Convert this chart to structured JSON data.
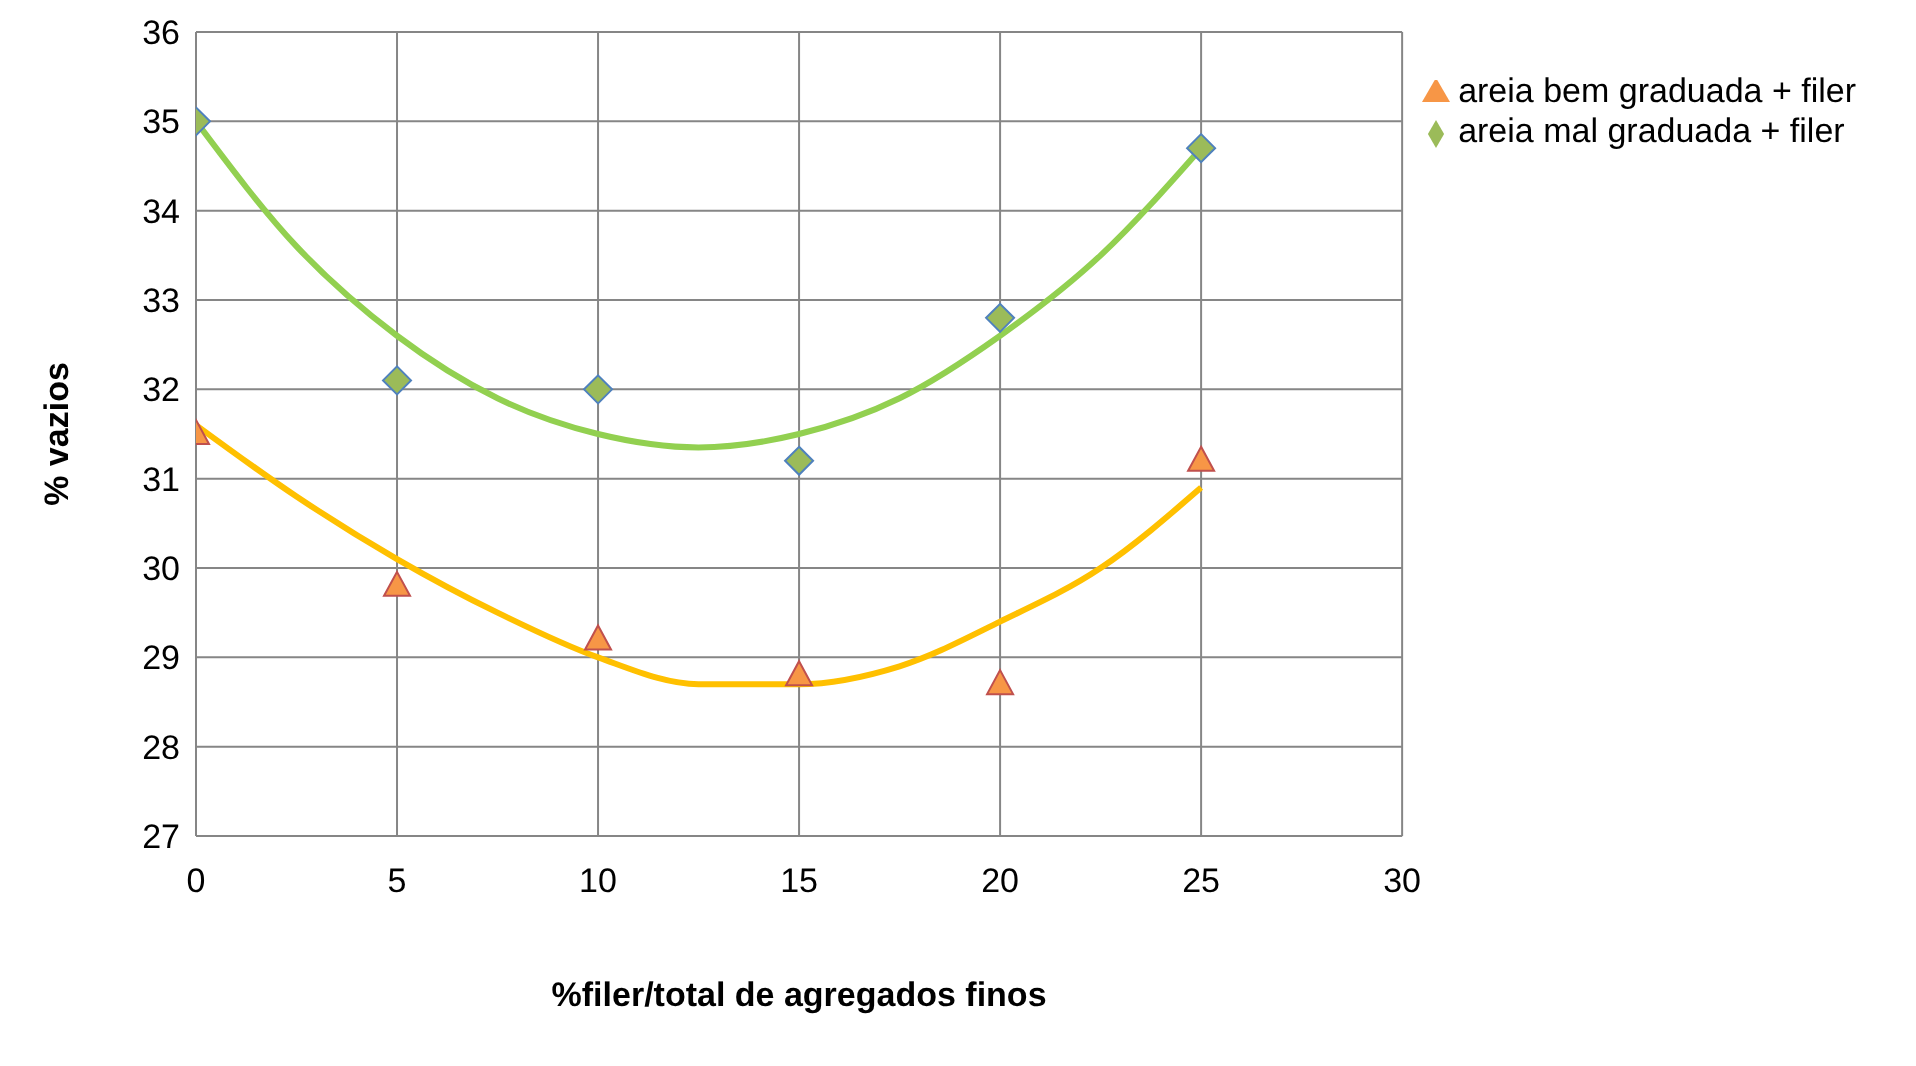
{
  "chart_data": {
    "type": "scatter",
    "xlabel": "%filer/total de agregados finos",
    "ylabel": "% vazios",
    "x": [
      0,
      5,
      10,
      15,
      20,
      25
    ],
    "series": [
      {
        "name": "areia mal graduada + filer",
        "color": "#9bbb59",
        "marker": "diamond",
        "values": [
          35,
          32.1,
          32.0,
          31.2,
          32.8,
          34.7
        ]
      },
      {
        "name": "areia bem graduada + filer",
        "color": "#f79646",
        "marker": "triangle",
        "values": [
          31.5,
          29.8,
          29.2,
          28.8,
          28.7,
          31.2
        ]
      },
      {
        "type": "line",
        "color": "#92d050",
        "marker": "none",
        "x": [
          0,
          2.5,
          5,
          7.5,
          10,
          12.5,
          15,
          17.5,
          20,
          22.5,
          25
        ],
        "values": [
          35.0,
          33.6,
          32.6,
          31.9,
          31.5,
          31.35,
          31.5,
          31.9,
          32.6,
          33.5,
          34.7
        ]
      },
      {
        "type": "line",
        "color": "#ffc000",
        "marker": "none",
        "x": [
          0,
          2.5,
          5,
          7.5,
          10,
          12.5,
          15,
          17.5,
          20,
          22.5,
          25
        ],
        "values": [
          31.6,
          30.8,
          30.1,
          29.5,
          29.0,
          28.7,
          28.7,
          28.9,
          29.4,
          30.0,
          30.9
        ]
      }
    ],
    "xlim": [
      0,
      30
    ],
    "xticks": [
      0,
      5,
      10,
      15,
      20,
      25,
      30
    ],
    "ylim": [
      27,
      36
    ],
    "yticks": [
      27,
      28,
      29,
      30,
      31,
      32,
      33,
      34,
      35,
      36
    ],
    "grid": true,
    "legend": "top right"
  }
}
